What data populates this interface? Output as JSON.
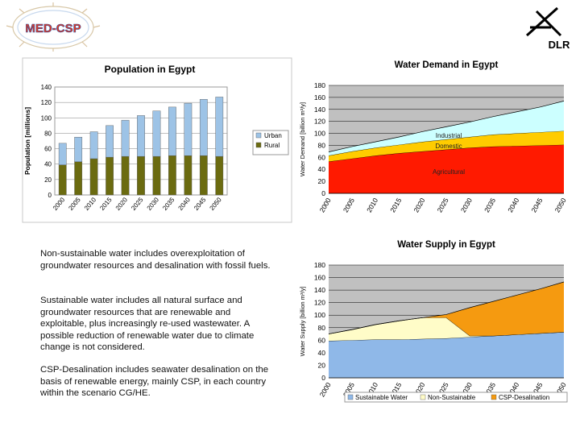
{
  "logos": {
    "med_csp": "MED-CSP",
    "dlr": "DLR"
  },
  "notes": [
    "Non-sustainable water includes overexploitation of groundwater resources and desalination with fossil fuels.",
    "Sustainable water includes all natural surface and groundwater resources that are renewable and exploitable, plus increasingly re-used wastewater. A possible reduction of renewable water due to climate change is not considered.",
    "CSP-Desalination includes seawater desalination on the basis of renewable energy, mainly CSP, in each country within the scenario CG/HE."
  ],
  "colors": {
    "urban": "#9dc3e6",
    "rural": "#6b6b10",
    "agricultural": "#ff1a00",
    "domestic": "#ffcc00",
    "industrial": "#ccffff",
    "sustainable": "#8fb8e8",
    "non_sustainable": "#fffcc8",
    "csp": "#f59a10",
    "gray_bg": "#c0c0c0"
  },
  "chart_data": [
    {
      "type": "bar",
      "stacked": true,
      "title": "Population in Egypt",
      "ylabel": "Population [millions]",
      "xlabel": "",
      "ylim": [
        0,
        140
      ],
      "yticks": [
        0,
        20,
        40,
        60,
        80,
        100,
        120,
        140
      ],
      "grid": true,
      "legend": "right",
      "categories": [
        "2000",
        "2005",
        "2010",
        "2015",
        "2020",
        "2025",
        "2030",
        "2035",
        "2040",
        "2045",
        "2050"
      ],
      "series": [
        {
          "name": "Rural",
          "values": [
            39,
            43,
            47,
            49,
            50,
            50,
            50,
            51,
            51,
            51,
            50
          ]
        },
        {
          "name": "Urban",
          "values": [
            28,
            32,
            35,
            41,
            47,
            53,
            59,
            63,
            68,
            73,
            77
          ]
        }
      ],
      "legend_order": [
        "Urban",
        "Rural"
      ]
    },
    {
      "type": "area",
      "stacked": true,
      "title": "Water Demand in Egypt",
      "ylabel": "Water Demand [billion m³/y]",
      "xlabel": "",
      "ylim": [
        0,
        180
      ],
      "yticks": [
        0,
        20,
        40,
        60,
        80,
        100,
        120,
        140,
        160,
        180
      ],
      "grid": true,
      "x": [
        "2000",
        "2005",
        "2010",
        "2015",
        "2020",
        "2025",
        "2030",
        "2035",
        "2040",
        "2045",
        "2050"
      ],
      "series": [
        {
          "name": "Agricultural",
          "values": [
            53,
            58,
            63,
            67,
            70,
            73,
            76,
            78,
            79,
            80,
            81
          ]
        },
        {
          "name": "Domestic",
          "values": [
            10,
            12,
            13,
            14,
            16,
            17,
            18,
            20,
            21,
            22,
            23
          ]
        },
        {
          "name": "Industrial",
          "values": [
            6,
            8,
            10,
            13,
            17,
            21,
            25,
            30,
            36,
            42,
            50
          ]
        }
      ]
    },
    {
      "type": "area",
      "stacked": true,
      "title": "Water Supply in Egypt",
      "ylabel": "Water Supply [billion m³/y]",
      "xlabel": "",
      "ylim": [
        0,
        180
      ],
      "yticks": [
        0,
        20,
        40,
        60,
        80,
        100,
        120,
        140,
        160,
        180
      ],
      "grid": true,
      "legend": "bottom",
      "x": [
        "2000",
        "2005",
        "2010",
        "2015",
        "2020",
        "2025",
        "2030",
        "2035",
        "2040",
        "2045",
        "2050"
      ],
      "series": [
        {
          "name": "Sustainable Water",
          "values": [
            59,
            60,
            61,
            61,
            62,
            63,
            65,
            67,
            69,
            71,
            73
          ]
        },
        {
          "name": "Non-Sustainable",
          "values": [
            11,
            17,
            24,
            30,
            34,
            33,
            2,
            0,
            0,
            0,
            0
          ]
        },
        {
          "name": "CSP-Desalination",
          "values": [
            0,
            0,
            0,
            0,
            0,
            5,
            45,
            55,
            63,
            71,
            80
          ]
        }
      ]
    }
  ]
}
